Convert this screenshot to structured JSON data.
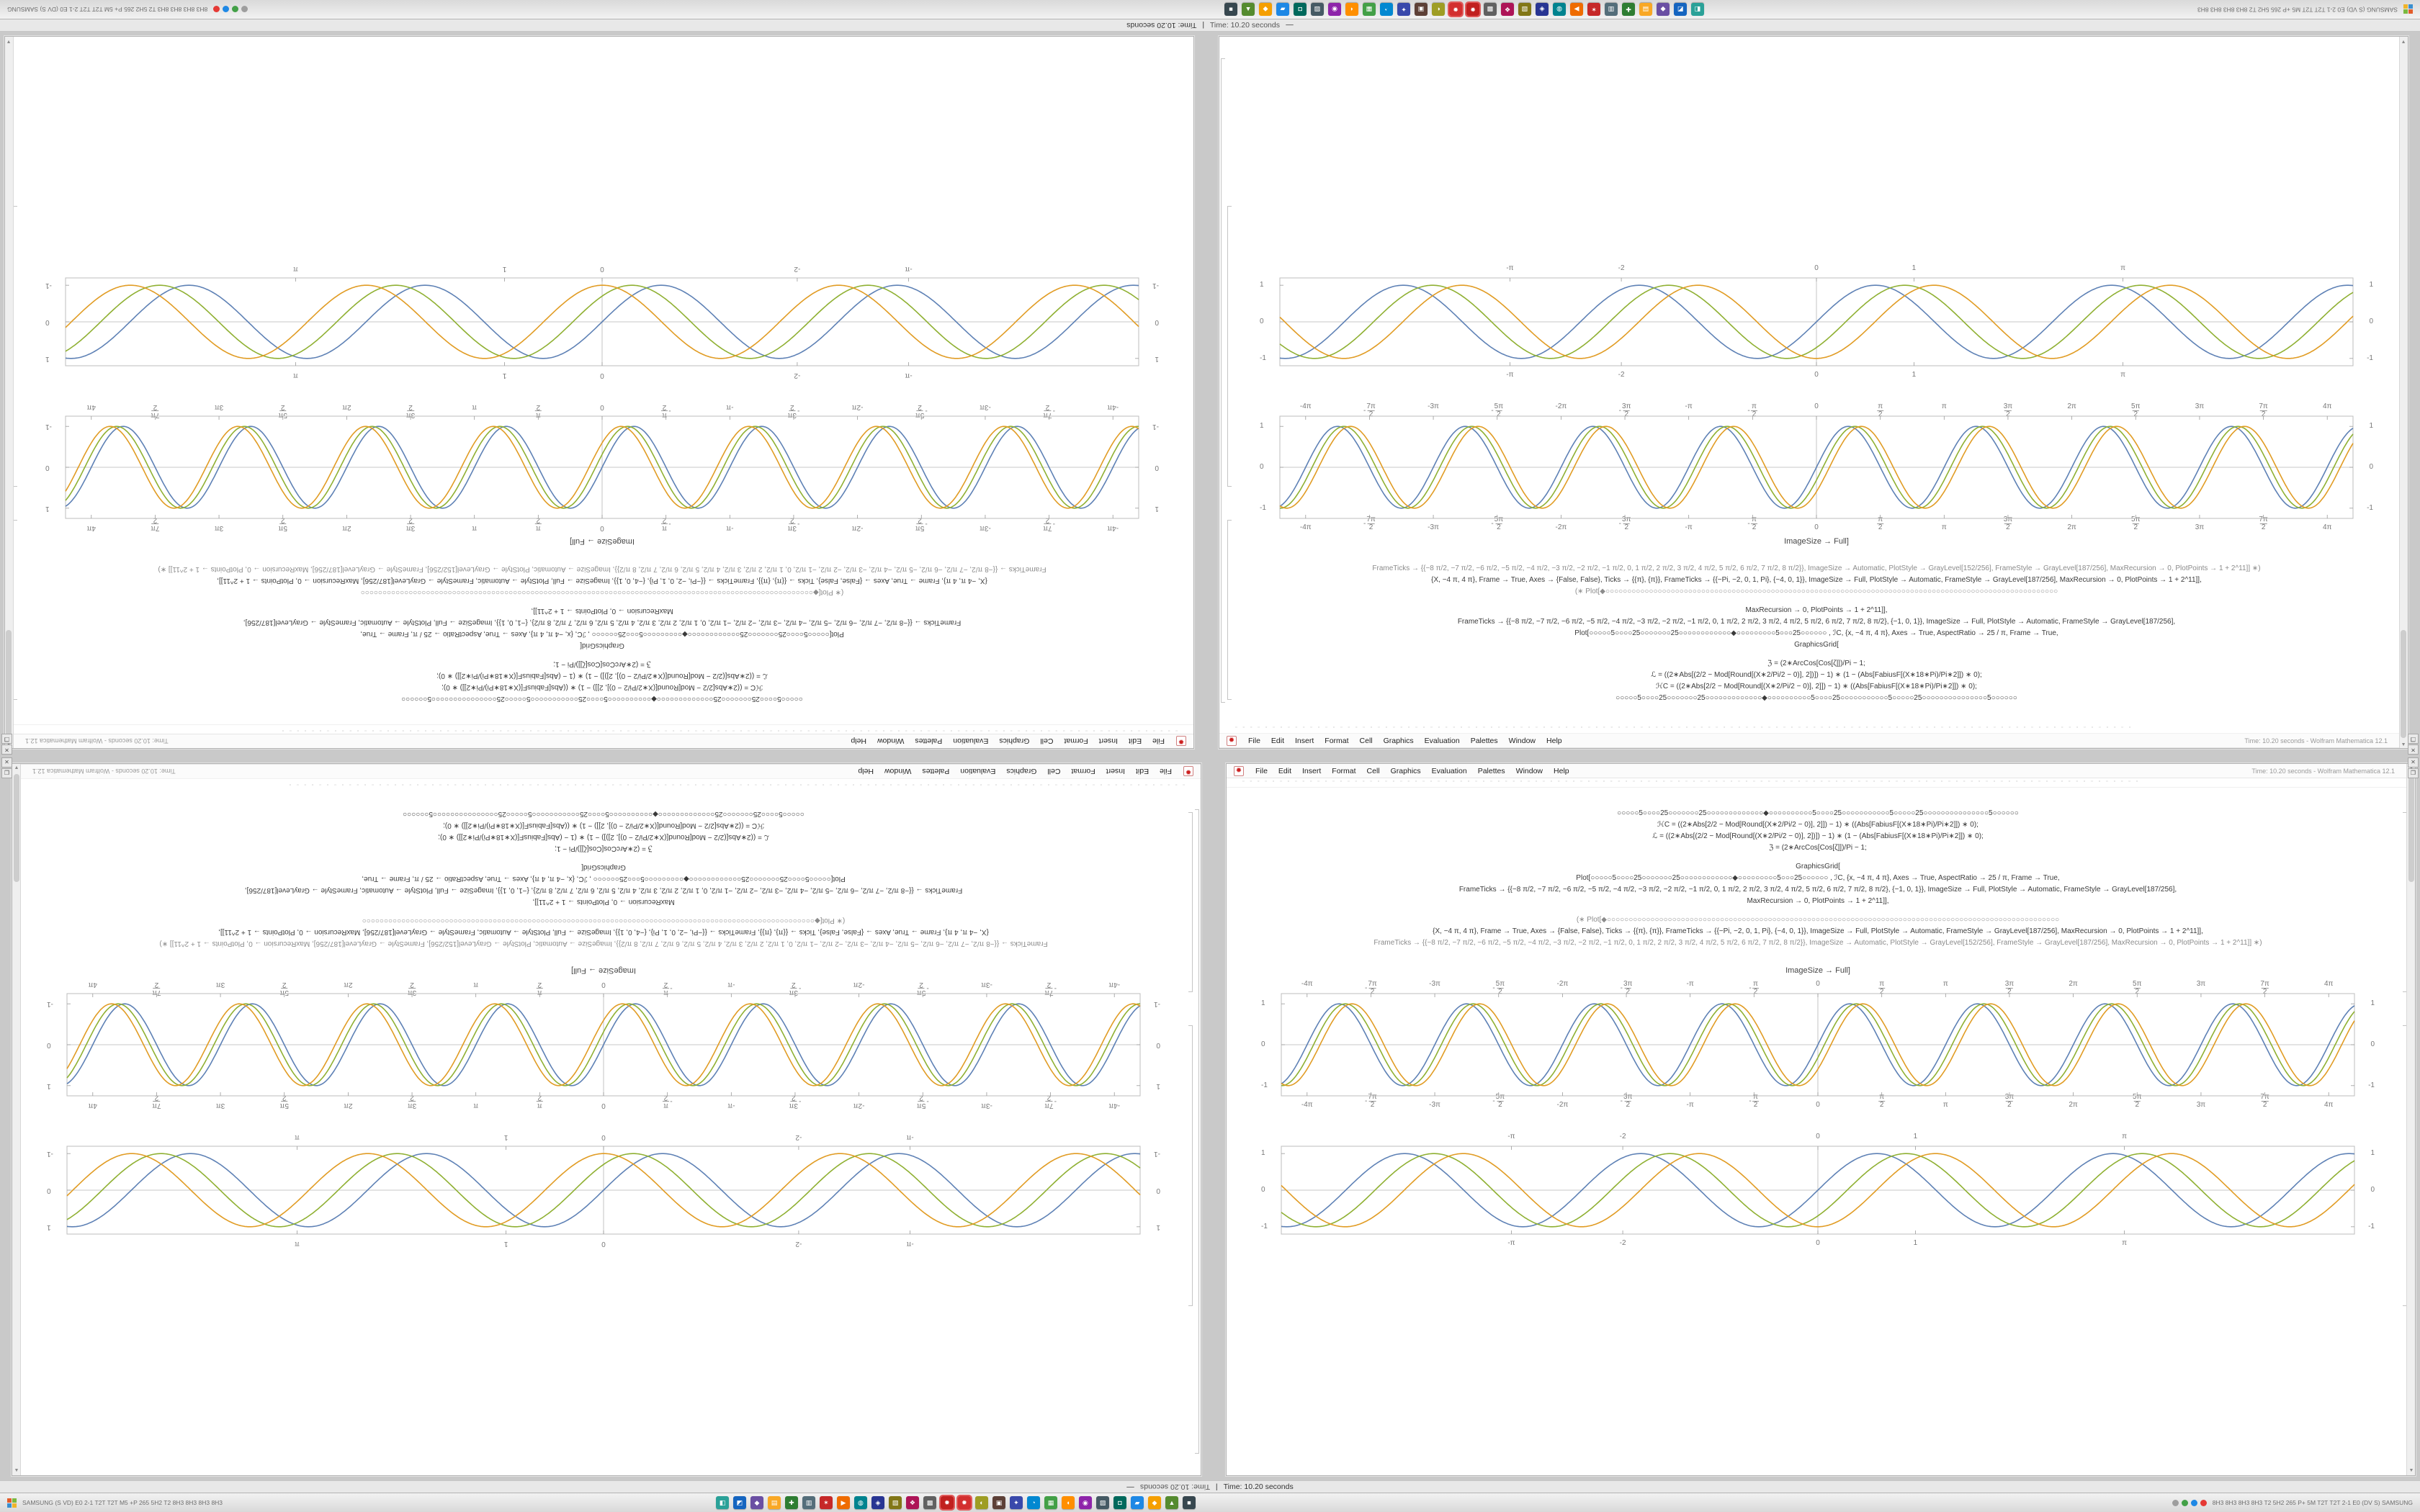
{
  "meta": {
    "title": "Time: 10.20 seconds",
    "title_prefix": "—",
    "title_separator": "|",
    "window_title": "Time: 10.20 seconds - Wolfram Mathematica 12.1",
    "app_icon_glyph": "✹"
  },
  "menu": {
    "items": [
      "File",
      "Edit",
      "Insert",
      "Format",
      "Cell",
      "Graphics",
      "Evaluation",
      "Palettes",
      "Window",
      "Help"
    ]
  },
  "controls": {
    "close": "✕",
    "restore": "❐",
    "scroll_up": "▲",
    "scroll_down": "▼"
  },
  "window": {
    "ruler_glyph": "▫",
    "caption": "ImageSize → Full]",
    "code_lines": [
      "○○○○○5○○○○25○○○○○○○25○○○○○○○○○○○○○◆○○○○○○○○○○5○○○○25○○○○○○○○○○○5○○○○○25○○○○○○○○○○○○○○○5○○○○○○",
      "ℋC = ((2∗Abs[2/2 − Mod[Round[(X∗2/Pi/2 − 0)], 2]]) − 1) ∗ ((Abs[FabiusF[(X∗18∗Pi)/Pi∗2]]) ∗ 0);",
      "ℒ = ((2∗Abs[(2/2 − Mod[Round[(X∗2/Pi/2 − 0)], 2])]) − 1) ∗ (1 − (Abs[FabiusF[(X∗18∗Pi)/Pi∗2]]) ∗ 0);",
      "ℨ = (2∗ArcCos[Cos[ζ]])/Pi − 1;",
      "",
      "GraphicsGrid[",
      "Plot[○○○○○5○○○○25○○○○○○○25○○○○○○○○○○○○◆○○○○○○○○○5○○○25○○○○○○ , ℐC, {x, −4 π, 4 π}, Axes → True, AspectRatio → 25 / π, Frame → True,",
      "FrameTicks → {{−8 π/2, −7 π/2, −6 π/2, −5 π/2, −4 π/2, −3 π/2, −2 π/2, −1 π/2, 0, 1 π/2, 2 π/2, 3 π/2, 4 π/2, 5 π/2, 6 π/2, 7 π/2, 8 π/2}, {−1, 0, 1}}, ImageSize → Full, PlotStyle → Automatic, FrameStyle → GrayLevel[187/256],",
      "MaxRecursion → 0, PlotPoints → 1 + 2^11]],",
      "",
      "(∗ Plot[◆○○○○○○○○○○○○○○○○○○○○○○○○○○○○○○○○○○○○○○○○○○○○○○○○○○○○○○○○○○○○○○○○○○○○○○○○○○○○○○○○○○○○○○○○○○○○○○○○○○○○○○○○",
      "{X, −4 π, 4 π}, Frame → True, Axes → {False, False}, Ticks → {{π}, {π}}, FrameTicks → {{−Pi, −2, 0, 1, Pi}, {−4, 0, 1}}, ImageSize → Full, PlotStyle → Automatic, FrameStyle → GrayLevel[187/256], MaxRecursion → 0, PlotPoints → 1 + 2^11]],",
      "FrameTicks → {{−8 π/2, −7 π/2, −6 π/2, −5 π/2, −4 π/2, −3 π/2, −2 π/2, −1 π/2, 0, 1 π/2, 2 π/2, 3 π/2, 4 π/2, 5 π/2, 6 π/2, 7 π/2, 8 π/2}}, ImageSize → Automatic, PlotStyle → GrayLevel[152/256], FrameStyle → GrayLevel[187/256], MaxRecursion → 0, PlotPoints → 1 + 2^11]] ∗)",
      ""
    ]
  },
  "taskbar": {
    "left_text": "SAMSUNG (S VD) E0 2-1 T2T T2T M5 +P 265 5H2 T2 8H3 8H3 8H3 8H3",
    "right_text": "8H3 8H3 8H3 8H3 T2 5H2 265 P+ 5M T2T T2T 2-1 E0 (DV S) SAMSUNG",
    "start_colors": [
      "#e35d2b",
      "#7bb93f",
      "#3a8fd0",
      "#f0b429"
    ],
    "icons": [
      {
        "color": "#2aa198",
        "glyph": "◧"
      },
      {
        "color": "#1565c0",
        "glyph": "◩"
      },
      {
        "color": "#6a4fa3",
        "glyph": "◆"
      },
      {
        "color": "#f9a825",
        "glyph": "▤"
      },
      {
        "color": "#2e7d32",
        "glyph": "✚"
      },
      {
        "color": "#546e7a",
        "glyph": "▥"
      },
      {
        "color": "#c62828",
        "glyph": "✶"
      },
      {
        "color": "#ef6c00",
        "glyph": "▶"
      },
      {
        "color": "#00838f",
        "glyph": "◍"
      },
      {
        "color": "#283593",
        "glyph": "◈"
      },
      {
        "color": "#827717",
        "glyph": "▧"
      },
      {
        "color": "#ad1457",
        "glyph": "❖"
      },
      {
        "color": "#616161",
        "glyph": "▩"
      },
      {
        "color": "#c1201f",
        "glyph": "✹",
        "active": true
      },
      {
        "color": "#d32f2f",
        "glyph": "✹",
        "active": true
      },
      {
        "color": "#9e9d24",
        "glyph": "◐"
      },
      {
        "color": "#5d4037",
        "glyph": "▣"
      },
      {
        "color": "#3949ab",
        "glyph": "✦"
      },
      {
        "color": "#0288d1",
        "glyph": "◔"
      },
      {
        "color": "#43a047",
        "glyph": "▦"
      },
      {
        "color": "#ff8f00",
        "glyph": "◖"
      },
      {
        "color": "#8e24aa",
        "glyph": "◉"
      },
      {
        "color": "#455a64",
        "glyph": "▨"
      },
      {
        "color": "#00695c",
        "glyph": "◘"
      },
      {
        "color": "#1e88e5",
        "glyph": "▰"
      },
      {
        "color": "#f59f00",
        "glyph": "◆"
      },
      {
        "color": "#558b2f",
        "glyph": "▲"
      },
      {
        "color": "#37474f",
        "glyph": "■"
      }
    ],
    "tray_icons": [
      {
        "color": "#9e9e9e"
      },
      {
        "color": "#43a047"
      },
      {
        "color": "#1e88e5"
      },
      {
        "color": "#e53935"
      }
    ]
  },
  "colors": {
    "series_blue": "#5e81b5",
    "series_olive": "#8fb032",
    "series_gold": "#e19c24",
    "frame_gray": "#bdbdbd",
    "accent_red": "#cc1f1f"
  },
  "chart_data": [
    {
      "id": "framed-plot-pi-ticks",
      "type": "line",
      "title": "",
      "xlabel": "",
      "ylabel": "",
      "grid": false,
      "legend": "none",
      "frame": true,
      "frame_color": "#bdbdbd",
      "axes": true,
      "x_range": [
        -13.2,
        13.2
      ],
      "y_range": [
        -1.25,
        1.25
      ],
      "x_ticks": [
        {
          "v": -12.566,
          "label": "-4π"
        },
        {
          "v": -10.996,
          "label": "-7π/2"
        },
        {
          "v": -9.425,
          "label": "-3π"
        },
        {
          "v": -7.854,
          "label": "-5π/2"
        },
        {
          "v": -6.283,
          "label": "-2π"
        },
        {
          "v": -4.712,
          "label": "-3π/2"
        },
        {
          "v": -3.142,
          "label": "-π"
        },
        {
          "v": -1.571,
          "label": "-π/2"
        },
        {
          "v": 0,
          "label": "0"
        },
        {
          "v": 1.571,
          "label": "π/2"
        },
        {
          "v": 3.142,
          "label": "π"
        },
        {
          "v": 4.712,
          "label": "3π/2"
        },
        {
          "v": 6.283,
          "label": "2π"
        },
        {
          "v": 7.854,
          "label": "5π/2"
        },
        {
          "v": 9.425,
          "label": "3π"
        },
        {
          "v": 10.996,
          "label": "7π/2"
        },
        {
          "v": 12.566,
          "label": "4π"
        }
      ],
      "y_ticks": [
        {
          "v": 1,
          "label": "1"
        },
        {
          "v": 0,
          "label": "0"
        },
        {
          "v": -1,
          "label": "-1"
        }
      ],
      "series": [
        {
          "name": "wave-blue",
          "color": "#5e81b5",
          "shape": "sin",
          "period": 3.1416,
          "amplitude": 1.0,
          "phase": 0
        },
        {
          "name": "wave-olive",
          "color": "#8fb032",
          "shape": "sin",
          "period": 3.1416,
          "amplitude": 1.0,
          "phase": 0.16
        },
        {
          "name": "wave-gold",
          "color": "#e19c24",
          "shape": "sin",
          "period": 3.1416,
          "amplitude": 1.0,
          "phase": 0.32
        }
      ]
    },
    {
      "id": "framed-plot-unit-ticks",
      "type": "line",
      "title": "",
      "xlabel": "",
      "ylabel": "",
      "grid": false,
      "legend": "none",
      "frame": true,
      "frame_color": "#bdbdbd",
      "axes": true,
      "x_range": [
        -5.5,
        5.5
      ],
      "y_range": [
        -1.2,
        1.2
      ],
      "x_ticks": [
        {
          "v": -3.1416,
          "label": "-π"
        },
        {
          "v": -2,
          "label": "-2"
        },
        {
          "v": 0,
          "label": "0"
        },
        {
          "v": 1,
          "label": "1"
        },
        {
          "v": 3.1416,
          "label": "π"
        }
      ],
      "y_ticks": [
        {
          "v": 1,
          "label": "1"
        },
        {
          "v": 0,
          "label": "0"
        },
        {
          "v": -1,
          "label": "-1"
        }
      ],
      "series": [
        {
          "name": "wave-blue",
          "color": "#5e81b5",
          "shape": "sin",
          "period": 2.42,
          "amplitude": 1.0,
          "phase": 0
        },
        {
          "name": "wave-olive",
          "color": "#8fb032",
          "shape": "sin",
          "period": 2.42,
          "amplitude": 1.0,
          "phase": 0.3
        },
        {
          "name": "wave-gold",
          "color": "#e19c24",
          "shape": "sin",
          "period": 2.42,
          "amplitude": 1.0,
          "phase": 0.6
        }
      ]
    }
  ]
}
